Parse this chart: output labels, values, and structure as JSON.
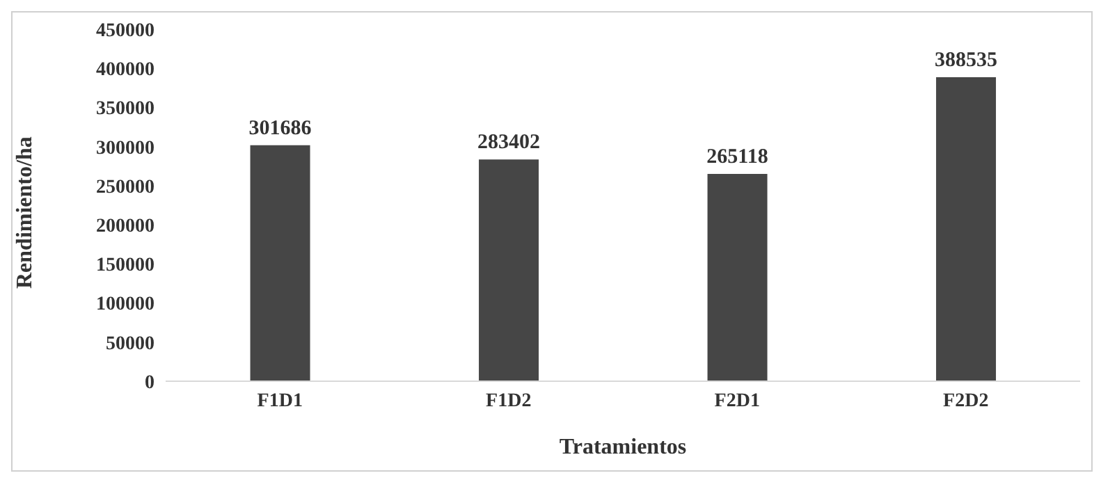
{
  "chart_data": {
    "type": "bar",
    "xlabel": "Tratamientos",
    "ylabel": "Rendimiento/ha",
    "categories": [
      "F1D1",
      "F1D2",
      "F2D1",
      "F2D2"
    ],
    "values": [
      301686,
      283402,
      265118,
      388535
    ],
    "color": "#464646",
    "ylim": [
      0,
      450000
    ],
    "yticks": [
      0,
      50000,
      100000,
      150000,
      200000,
      250000,
      300000,
      350000,
      400000,
      450000
    ],
    "grid": false,
    "data_labels": true
  }
}
